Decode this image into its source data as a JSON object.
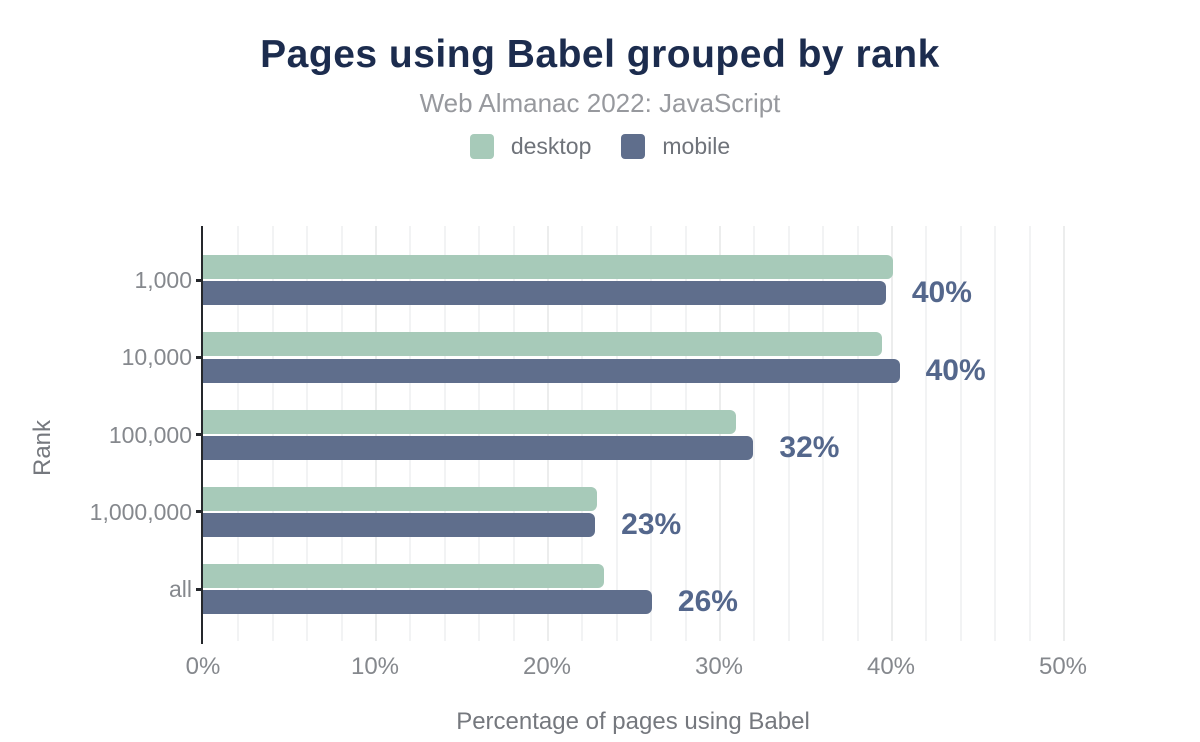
{
  "chart_data": {
    "type": "bar",
    "orientation": "horizontal",
    "title": "Pages using Babel grouped by rank",
    "subtitle": "Web Almanac 2022: JavaScript",
    "categories": [
      "1,000",
      "10,000",
      "100,000",
      "1,000,000",
      "all"
    ],
    "series": [
      {
        "name": "desktop",
        "color": "#a7cab9",
        "values": [
          40.1,
          39.5,
          31.0,
          22.9,
          23.3
        ]
      },
      {
        "name": "mobile",
        "color": "#5f6e8c",
        "values": [
          39.7,
          40.5,
          32.0,
          22.8,
          26.1
        ]
      }
    ],
    "annotations": {
      "aligned_to_series": "mobile",
      "labels": [
        "40%",
        "40%",
        "32%",
        "23%",
        "26%"
      ]
    },
    "xlabel": "Percentage of pages using Babel",
    "ylabel": "Rank",
    "xlim": [
      0,
      50
    ],
    "x_ticks": [
      "0%",
      "10%",
      "20%",
      "30%",
      "40%",
      "50%"
    ],
    "x_tick_values": [
      0,
      10,
      20,
      30,
      40,
      50
    ],
    "grid": {
      "minor_step": 2,
      "major_step": 10,
      "visible": true
    },
    "legend": {
      "position": "top",
      "entries": [
        "desktop",
        "mobile"
      ]
    },
    "colors": {
      "title": "#1c2c4e",
      "subtitle": "#97999e",
      "legend_text": "#6f737a",
      "annotation": "#54678c",
      "tick_text": "#85888d",
      "axis_title_text": "#75787e",
      "axis_line": "#25282c",
      "grid_minor": "#f2f3f4",
      "grid_major": "#eceded",
      "background": "#ffffff"
    }
  }
}
